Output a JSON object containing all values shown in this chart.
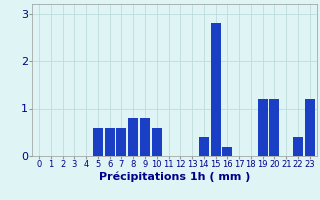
{
  "hours": [
    0,
    1,
    2,
    3,
    4,
    5,
    6,
    7,
    8,
    9,
    10,
    11,
    12,
    13,
    14,
    15,
    16,
    17,
    18,
    19,
    20,
    21,
    22,
    23
  ],
  "values": [
    0,
    0,
    0,
    0,
    0,
    0.6,
    0.6,
    0.6,
    0.8,
    0.8,
    0.6,
    0,
    0,
    0,
    0.4,
    2.8,
    0.2,
    0,
    0,
    1.2,
    1.2,
    0,
    0.4,
    1.2
  ],
  "bar_color": "#1a3fc4",
  "background_color": "#dff4f4",
  "grid_color": "#b8d8d8",
  "xlabel": "Précipitations 1h ( mm )",
  "xlabel_color": "#00008b",
  "tick_color": "#00008b",
  "ylabel_ticks": [
    0,
    1,
    2,
    3
  ],
  "ylim": [
    0,
    3.2
  ],
  "axis_fontsize": 6
}
